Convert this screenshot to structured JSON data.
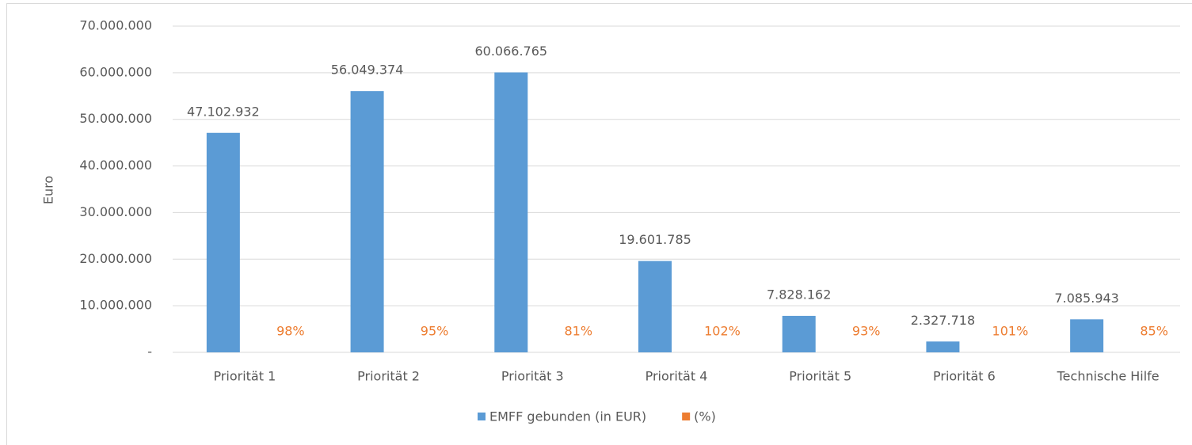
{
  "chart_data": {
    "type": "bar",
    "ylabel": "Euro",
    "categories": [
      "Priorität 1",
      "Priorität 2",
      "Priorität 3",
      "Priorität 4",
      "Priorität 5",
      "Priorität 6",
      "Technische Hilfe"
    ],
    "series": [
      {
        "name": "EMFF gebunden (in EUR)",
        "color": "#5b9bd5",
        "values": [
          47102932,
          56049374,
          60066765,
          19601785,
          7828162,
          2327718,
          7085943
        ],
        "value_labels": [
          "47.102.932",
          "56.049.374",
          "60.066.765",
          "19.601.785",
          "7.828.162",
          "2.327.718",
          "7.085.943"
        ]
      },
      {
        "name": "(%)",
        "color": "#ed7d31",
        "values": [
          98,
          95,
          81,
          102,
          93,
          101,
          85
        ],
        "value_labels": [
          "98%",
          "95%",
          "81%",
          "102%",
          "93%",
          "101%",
          "85%"
        ]
      }
    ],
    "ylim": [
      0,
      70000000
    ],
    "yticks": [
      {
        "value": 0,
        "label": "-"
      },
      {
        "value": 10000000,
        "label": "10.000.000"
      },
      {
        "value": 20000000,
        "label": "20.000.000"
      },
      {
        "value": 30000000,
        "label": "30.000.000"
      },
      {
        "value": 40000000,
        "label": "40.000.000"
      },
      {
        "value": 50000000,
        "label": "50.000.000"
      },
      {
        "value": 60000000,
        "label": "60.000.000"
      },
      {
        "value": 70000000,
        "label": "70.000.000"
      }
    ],
    "grid": true,
    "legend": "bottom"
  }
}
